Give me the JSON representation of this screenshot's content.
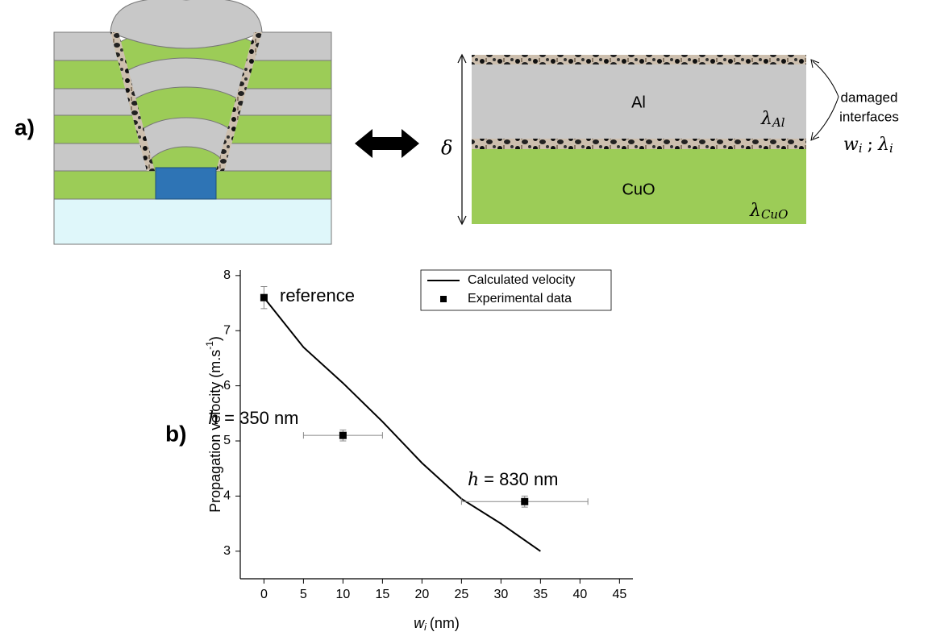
{
  "panel_a": {
    "label": "a)",
    "layer_al": "Al",
    "layer_cuo": "CuO",
    "lambda_al": {
      "symbol": "λ",
      "sub": "Al"
    },
    "lambda_cuo": {
      "symbol": "λ",
      "sub": "CuO"
    },
    "delta": "δ",
    "damaged_interfaces": [
      "damaged",
      "interfaces"
    ],
    "interface_params": {
      "w": "w",
      "w_sub": "i",
      "sep": ";",
      "lambda": "λ",
      "lambda_sub": "i"
    }
  },
  "panel_b": {
    "label": "b)"
  },
  "chart_data": {
    "type": "line",
    "xlabel": {
      "symbol": "w",
      "sub": "i",
      "unit": "(nm)"
    },
    "ylabel": {
      "text": "Propagation velocity (m.s",
      "sup": "-1",
      "close": ")"
    },
    "xlim": [
      -3,
      46.7
    ],
    "ylim": [
      2.5,
      8.1
    ],
    "xticks": [
      0,
      5,
      10,
      15,
      20,
      25,
      30,
      35,
      40,
      45
    ],
    "yticks": [
      3,
      4,
      5,
      6,
      7,
      8
    ],
    "legend": "upper right",
    "series": [
      {
        "name": "Calculated velocity",
        "type": "line",
        "color": "#000000",
        "x": [
          0,
          5,
          10,
          15,
          20,
          25,
          30,
          35
        ],
        "values": [
          7.6,
          6.7,
          6.05,
          5.35,
          4.6,
          3.95,
          3.5,
          3.0
        ]
      },
      {
        "name": "Experimental data",
        "type": "scatter",
        "color": "#000000",
        "error_color": "#888888",
        "x": [
          0,
          10,
          33
        ],
        "values": [
          7.6,
          5.1,
          3.9
        ],
        "xerr": [
          null,
          5,
          8
        ],
        "yerr": [
          0.2,
          0.1,
          0.1
        ]
      }
    ],
    "annotations": [
      {
        "text": "reference"
      },
      {
        "symbol": "h",
        "text": "= 350 nm"
      },
      {
        "symbol": "h",
        "text": "= 830 nm"
      }
    ]
  }
}
